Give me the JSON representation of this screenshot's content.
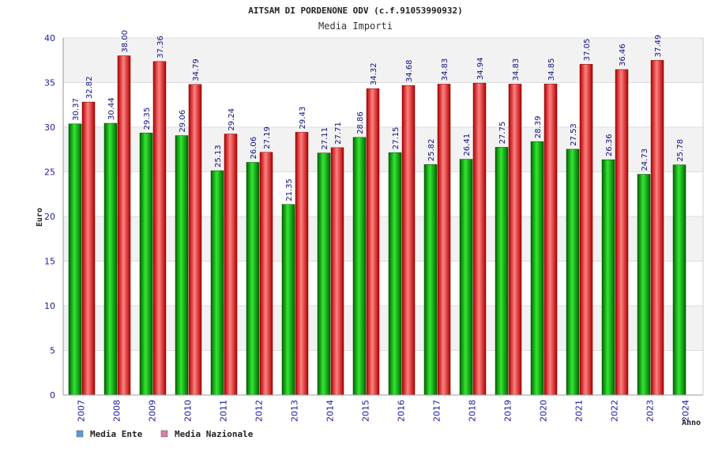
{
  "chart_data": {
    "type": "bar",
    "title": "AITSAM DI PORDENONE ODV (c.f.91053990932)",
    "subtitle": "Media Importi",
    "xlabel": "Anno",
    "ylabel": "Euro",
    "ylim": [
      0,
      40
    ],
    "yticks": [
      0,
      5,
      10,
      15,
      20,
      25,
      30,
      35,
      40
    ],
    "grid": true,
    "legend_position": "bottom-left",
    "categories": [
      "2007",
      "2008",
      "2009",
      "2010",
      "2011",
      "2012",
      "2013",
      "2014",
      "2015",
      "2016",
      "2017",
      "2018",
      "2019",
      "2020",
      "2021",
      "2022",
      "2023",
      "2024"
    ],
    "series": [
      {
        "name": "Media Ente",
        "color": "#00b000",
        "legend_color": "#5b9bd5",
        "values": [
          30.37,
          30.44,
          29.35,
          29.06,
          25.13,
          26.06,
          21.35,
          27.11,
          28.86,
          27.15,
          25.82,
          26.41,
          27.75,
          28.39,
          27.53,
          26.36,
          24.73,
          25.78
        ],
        "labels": [
          "30.37",
          "30.44",
          "29.35",
          "29.06",
          "25.13",
          "26.06",
          "21.35",
          "27.11",
          "28.86",
          "27.15",
          "25.82",
          "26.41",
          "27.75",
          "28.39",
          "27.53",
          "26.36",
          "24.73",
          "25.78"
        ]
      },
      {
        "name": "Media Nazionale",
        "color": "#e00000",
        "legend_color": "#d87fa8",
        "values": [
          32.82,
          38.0,
          37.36,
          34.79,
          29.24,
          27.19,
          29.43,
          27.71,
          34.32,
          34.68,
          34.83,
          34.94,
          34.83,
          34.85,
          37.05,
          36.46,
          37.49,
          null
        ],
        "labels": [
          "32.82",
          "38.00",
          "37.36",
          "34.79",
          "29.24",
          "27.19",
          "29.43",
          "27.71",
          "34.32",
          "34.68",
          "34.83",
          "34.94",
          "34.83",
          "34.85",
          "37.05",
          "36.46",
          "37.49",
          ""
        ]
      }
    ]
  }
}
